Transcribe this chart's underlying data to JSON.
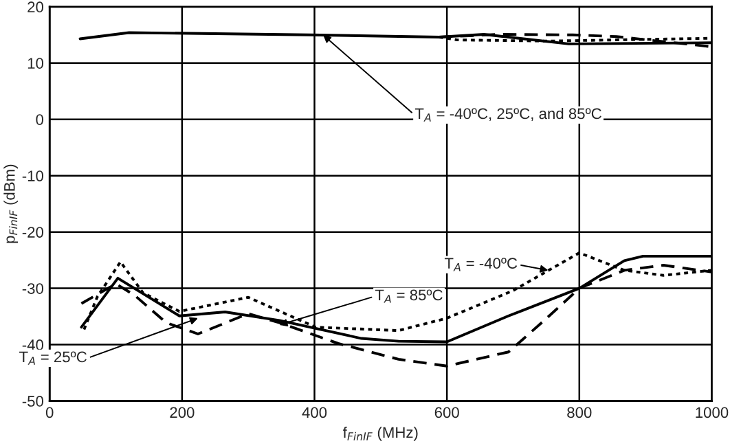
{
  "chart_data": {
    "type": "line",
    "xlabel": "f$_{FinIF}$ (MHz)",
    "ylabel": "p$_{FinIF}$ (dBm)",
    "xlim": [
      0,
      1000
    ],
    "xticks": [
      0,
      200,
      400,
      600,
      800,
      1000
    ],
    "ylim": [
      -50,
      20
    ],
    "yticks": [
      -50,
      -40,
      -30,
      -20,
      -10,
      0,
      10,
      20
    ],
    "grid": true,
    "legend": false,
    "marker": "none",
    "series": [
      {
        "color": "#000000",
        "line_style": "solid",
        "x": [
          46,
          120,
          393,
          588,
          656,
          784,
          1000
        ],
        "values": [
          14.3,
          15.4,
          15.0,
          14.6,
          15.1,
          13.4,
          13.6
        ]
      },
      {
        "color": "#000000",
        "line_style": "dashed",
        "x": [
          588,
          680,
          790,
          856,
          1000
        ],
        "values": [
          14.6,
          15.1,
          15.0,
          14.7,
          12.9
        ]
      },
      {
        "color": "#000000",
        "line_style": "dotted",
        "x": [
          588,
          616,
          753,
          1000
        ],
        "values": [
          14.6,
          14.1,
          13.9,
          14.4
        ]
      },
      {
        "color": "#000000",
        "line_style": "solid",
        "x": [
          48,
          103,
          196,
          265,
          347,
          471,
          527,
          600,
          693,
          800,
          868,
          896,
          1000
        ],
        "values": [
          -36.9,
          -28.2,
          -34.9,
          -34.2,
          -35.7,
          -38.9,
          -39.4,
          -39.5,
          -34.9,
          -30.0,
          -25.1,
          -24.3,
          -24.3
        ]
      },
      {
        "color": "#000000",
        "line_style": "dashed",
        "x": [
          48,
          100,
          128,
          176,
          224,
          300,
          347,
          436,
          527,
          600,
          693,
          747,
          800,
          868,
          927,
          1000
        ],
        "values": [
          -32.7,
          -29.2,
          -31.2,
          -36.1,
          -38.1,
          -34.5,
          -36.1,
          -39.8,
          -42.6,
          -43.8,
          -41.3,
          -35.7,
          -30.0,
          -26.8,
          -25.9,
          -27.1
        ]
      },
      {
        "color": "#000000",
        "line_style": "dotted",
        "x": [
          52,
          72,
          107,
          141,
          196,
          300,
          402,
          527,
          600,
          700,
          800,
          868,
          927,
          1000
        ],
        "values": [
          -37.3,
          -31.5,
          -25.3,
          -30.8,
          -34.1,
          -31.6,
          -36.9,
          -37.5,
          -35.3,
          -30.4,
          -23.7,
          -26.8,
          -27.7,
          -26.8
        ]
      }
    ],
    "annotations": [
      {
        "text": "T$_{A}$ = -40ºC, 25ºC, and 85ºC",
        "x": 413,
        "y": 15.0
      },
      {
        "text": "T$_{A}$ = -40ºC",
        "x": 753,
        "y": -26.8
      },
      {
        "text": "T$_{A}$ = 85ºC",
        "x": 347,
        "y": -36.5
      },
      {
        "text": "T$_{A}$ = 25ºC",
        "x": 224,
        "y": -35.3
      }
    ]
  }
}
